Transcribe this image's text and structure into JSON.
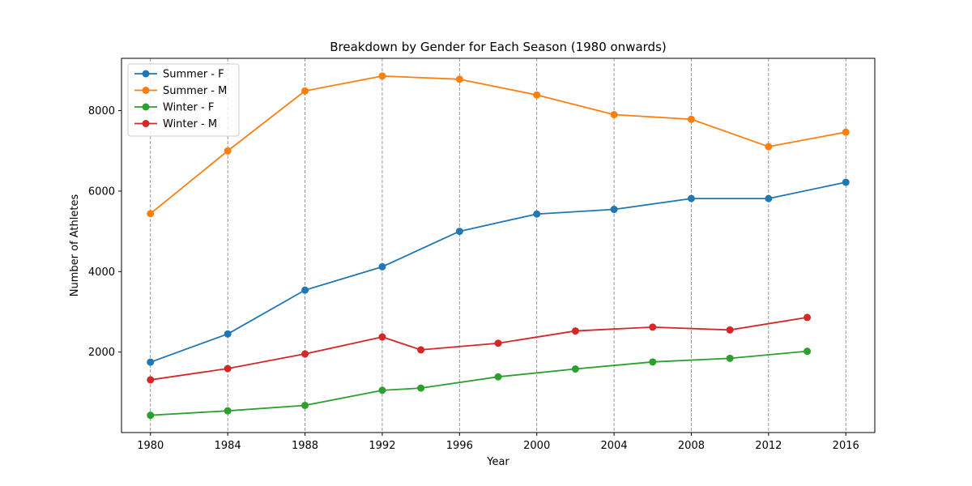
{
  "chart_data": {
    "type": "line",
    "title": "Breakdown by Gender for Each Season (1980 onwards)",
    "xlabel": "Year",
    "ylabel": "Number of Athletes",
    "xlim": [
      1978.5,
      2017.5
    ],
    "ylim": [
      0,
      9300
    ],
    "xticks": [
      1980,
      1984,
      1988,
      1992,
      1996,
      2000,
      2004,
      2008,
      2012,
      2016
    ],
    "yticks": [
      2000,
      4000,
      6000,
      8000
    ],
    "vertical_gridlines": [
      1980,
      1984,
      1988,
      1992,
      1996,
      2000,
      2004,
      2008,
      2012,
      2016
    ],
    "legend_position": "top-left",
    "series": [
      {
        "name": "Summer - F",
        "color": "#1f77b4",
        "points": [
          [
            1980,
            1750
          ],
          [
            1984,
            2450
          ],
          [
            1988,
            3540
          ],
          [
            1992,
            4120
          ],
          [
            1996,
            5000
          ],
          [
            2000,
            5430
          ],
          [
            2004,
            5545
          ],
          [
            2008,
            5815
          ],
          [
            2012,
            5815
          ],
          [
            2016,
            6220
          ]
        ]
      },
      {
        "name": "Summer - M",
        "color": "#ff7f0e",
        "points": [
          [
            1980,
            5440
          ],
          [
            1984,
            7000
          ],
          [
            1988,
            8490
          ],
          [
            1992,
            8860
          ],
          [
            1996,
            8780
          ],
          [
            2000,
            8390
          ],
          [
            2004,
            7900
          ],
          [
            2008,
            7785
          ],
          [
            2012,
            7105
          ],
          [
            2016,
            7465
          ]
        ]
      },
      {
        "name": "Winter - F",
        "color": "#2ca02c",
        "points": [
          [
            1980,
            430
          ],
          [
            1984,
            540
          ],
          [
            1988,
            675
          ],
          [
            1992,
            1050
          ],
          [
            1994,
            1105
          ],
          [
            1998,
            1385
          ],
          [
            2002,
            1580
          ],
          [
            2006,
            1755
          ],
          [
            2010,
            1845
          ],
          [
            2014,
            2020
          ]
        ]
      },
      {
        "name": "Winter - M",
        "color": "#d62728",
        "points": [
          [
            1980,
            1310
          ],
          [
            1984,
            1590
          ],
          [
            1988,
            1955
          ],
          [
            1992,
            2375
          ],
          [
            1994,
            2055
          ],
          [
            1998,
            2220
          ],
          [
            2002,
            2525
          ],
          [
            2006,
            2620
          ],
          [
            2010,
            2550
          ],
          [
            2014,
            2860
          ]
        ]
      }
    ]
  }
}
